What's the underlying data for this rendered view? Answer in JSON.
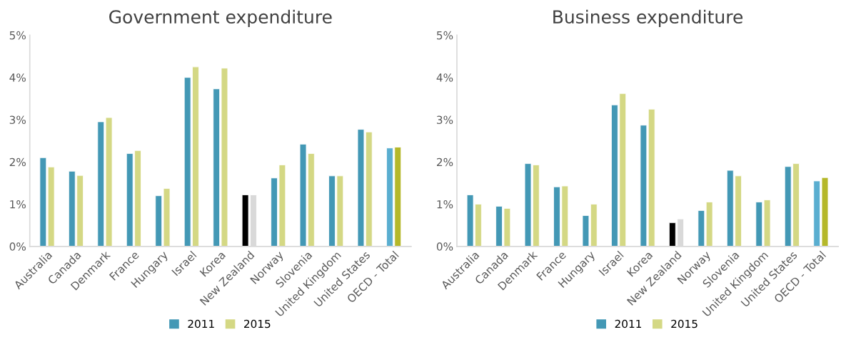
{
  "chart_data": [
    {
      "type": "bar",
      "title": "Government expenditure",
      "categories": [
        "Australia",
        "Canada",
        "Denmark",
        "France",
        "Hungary",
        "Israel",
        "Korea",
        "New Zealand",
        "Norway",
        "Slovenia",
        "United Kingdom",
        "United States",
        "OECD - Total"
      ],
      "series": [
        {
          "name": "2011",
          "color": "#4398b5",
          "colors": [
            "#4398b5",
            "#4398b5",
            "#4398b5",
            "#4398b5",
            "#4398b5",
            "#4398b5",
            "#4398b5",
            "#000000",
            "#4398b5",
            "#4398b5",
            "#4398b5",
            "#4398b5",
            "#5aaed0"
          ],
          "values": [
            2.1,
            1.78,
            2.95,
            2.2,
            1.2,
            4.0,
            3.73,
            1.22,
            1.62,
            2.42,
            1.67,
            2.77,
            2.33
          ]
        },
        {
          "name": "2015",
          "color": "#d4d884",
          "colors": [
            "#d4d884",
            "#d4d884",
            "#d4d884",
            "#d4d884",
            "#d4d884",
            "#d4d884",
            "#d4d884",
            "#d9d9d9",
            "#d4d884",
            "#d4d884",
            "#d4d884",
            "#d4d884",
            "#b5b82a"
          ],
          "values": [
            1.88,
            1.68,
            3.05,
            2.27,
            1.37,
            4.25,
            4.22,
            1.22,
            1.93,
            2.2,
            1.67,
            2.71,
            2.35
          ]
        }
      ],
      "ylim": [
        0,
        5
      ],
      "yticks": [
        {
          "value": 0,
          "label": "0%"
        },
        {
          "value": 1,
          "label": "1%"
        },
        {
          "value": 2,
          "label": "2%"
        },
        {
          "value": 3,
          "label": "3%"
        },
        {
          "value": 4,
          "label": "4%"
        },
        {
          "value": 5,
          "label": "5%"
        }
      ],
      "grid": false,
      "legend": "bottom"
    },
    {
      "type": "bar",
      "title": "Business expenditure",
      "categories": [
        "Australia",
        "Canada",
        "Denmark",
        "France",
        "Hungary",
        "Israel",
        "Korea",
        "New Zealand",
        "Norway",
        "Slovenia",
        "United Kingdom",
        "United States",
        "OECD - Total"
      ],
      "series": [
        {
          "name": "2011",
          "color": "#4398b5",
          "colors": [
            "#4398b5",
            "#4398b5",
            "#4398b5",
            "#4398b5",
            "#4398b5",
            "#4398b5",
            "#4398b5",
            "#000000",
            "#4398b5",
            "#4398b5",
            "#4398b5",
            "#4398b5",
            "#5aaed0"
          ],
          "values": [
            1.22,
            0.95,
            1.96,
            1.41,
            0.73,
            3.35,
            2.87,
            0.56,
            0.85,
            1.8,
            1.05,
            1.89,
            1.55
          ]
        },
        {
          "name": "2015",
          "color": "#d4d884",
          "colors": [
            "#d4d884",
            "#d4d884",
            "#d4d884",
            "#d4d884",
            "#d4d884",
            "#d4d884",
            "#d4d884",
            "#d9d9d9",
            "#d4d884",
            "#d4d884",
            "#d4d884",
            "#d4d884",
            "#b5b82a"
          ],
          "values": [
            1.0,
            0.9,
            1.93,
            1.43,
            1.0,
            3.62,
            3.25,
            0.65,
            1.05,
            1.67,
            1.1,
            1.96,
            1.63
          ]
        }
      ],
      "ylim": [
        0,
        5
      ],
      "yticks": [
        {
          "value": 0,
          "label": "0%"
        },
        {
          "value": 1,
          "label": "1%"
        },
        {
          "value": 2,
          "label": "2%"
        },
        {
          "value": 3,
          "label": "3%"
        },
        {
          "value": 4,
          "label": "4%"
        },
        {
          "value": 5,
          "label": "5%"
        }
      ],
      "grid": false,
      "legend": "bottom"
    }
  ]
}
